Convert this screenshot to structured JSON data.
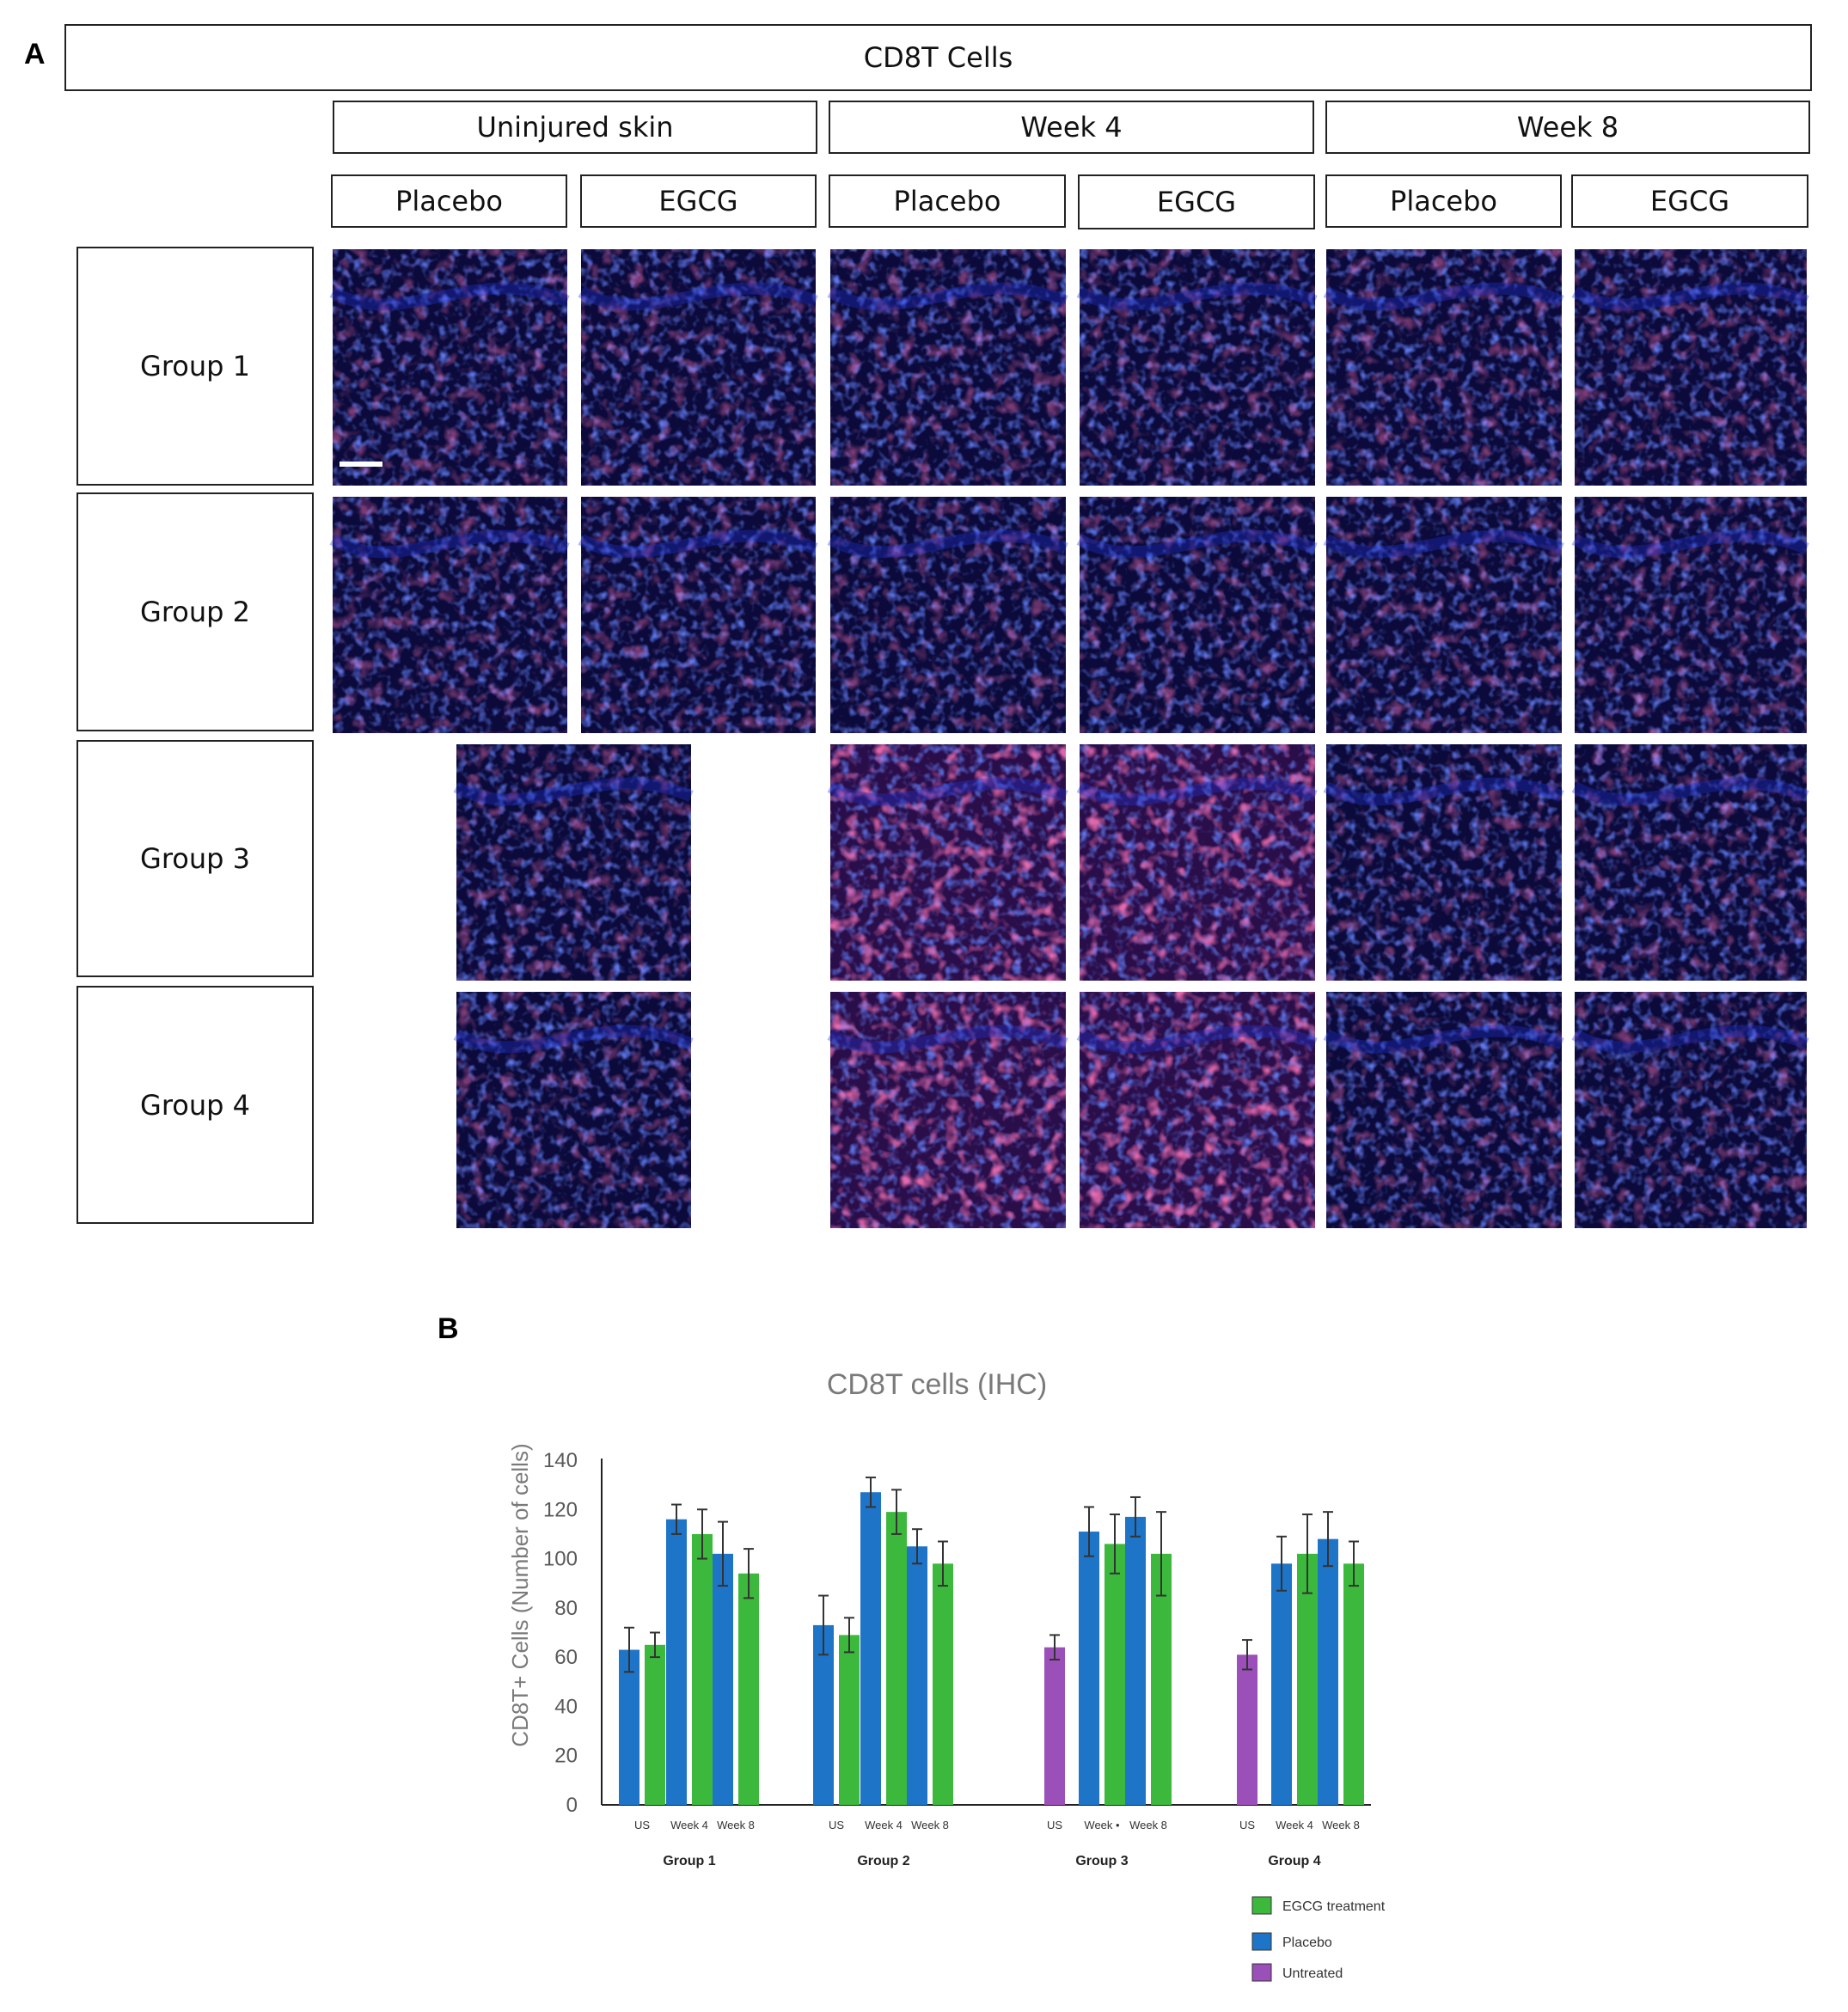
{
  "panel_a": {
    "letter": "A",
    "title": "CD8T Cells",
    "periods": [
      "Uninjured skin",
      "Week 4",
      "Week 8"
    ],
    "treatments": [
      "Placebo",
      "EGCG",
      "Placebo",
      "EGCG",
      "Placebo",
      "EGCG"
    ],
    "groups": [
      "Group 1",
      "Group 2",
      "Group 3",
      "Group 4"
    ],
    "colors": {
      "nuclei": "#1f33d6",
      "background": "#0b0a3a",
      "cd8": "#ff2d7a"
    }
  },
  "panel_b": {
    "letter": "B"
  },
  "chart_data": {
    "type": "bar",
    "title": "CD8T cells (IHC)",
    "xlabel": "",
    "ylabel": "CD8T+ Cells (Number of cells)",
    "ylim": [
      0,
      140
    ],
    "yticks": [
      0,
      20,
      40,
      60,
      80,
      100,
      120,
      140
    ],
    "grid": false,
    "legend_position": "bottom-right",
    "legend": [
      {
        "name": "EGCG treatment",
        "color": "#3cb93c"
      },
      {
        "name": "Placebo",
        "color": "#1e74c7"
      },
      {
        "name": "Untreated",
        "color": "#9b4fb8"
      }
    ],
    "groups": [
      {
        "label": "Group 1",
        "tick_labels": [
          "US",
          "Week 4",
          "Week 8"
        ],
        "bars": [
          {
            "tick": 0,
            "series": "Placebo",
            "value": 63,
            "error": 9
          },
          {
            "tick": 0,
            "series": "EGCG treatment",
            "value": 65,
            "error": 5
          },
          {
            "tick": 1,
            "series": "Placebo",
            "value": 116,
            "error": 6
          },
          {
            "tick": 1,
            "series": "EGCG treatment",
            "value": 110,
            "error": 10
          },
          {
            "tick": 2,
            "series": "Placebo",
            "value": 102,
            "error": 13
          },
          {
            "tick": 2,
            "series": "EGCG treatment",
            "value": 94,
            "error": 10
          }
        ]
      },
      {
        "label": "Group 2",
        "tick_labels": [
          "US",
          "Week 4",
          "Week 8"
        ],
        "bars": [
          {
            "tick": 0,
            "series": "Placebo",
            "value": 73,
            "error": 12
          },
          {
            "tick": 0,
            "series": "EGCG treatment",
            "value": 69,
            "error": 7
          },
          {
            "tick": 1,
            "series": "Placebo",
            "value": 127,
            "error": 6
          },
          {
            "tick": 1,
            "series": "EGCG treatment",
            "value": 119,
            "error": 9
          },
          {
            "tick": 2,
            "series": "Placebo",
            "value": 105,
            "error": 7
          },
          {
            "tick": 2,
            "series": "EGCG treatment",
            "value": 98,
            "error": 9
          }
        ]
      },
      {
        "label": "Group 3",
        "tick_labels": [
          "US",
          "Week •",
          "Week 8"
        ],
        "bars": [
          {
            "tick": 0,
            "series": "Untreated",
            "value": 64,
            "error": 5
          },
          {
            "tick": 1,
            "series": "Placebo",
            "value": 111,
            "error": 10
          },
          {
            "tick": 1,
            "series": "EGCG treatment",
            "value": 106,
            "error": 12
          },
          {
            "tick": 2,
            "series": "Placebo",
            "value": 117,
            "error": 8
          },
          {
            "tick": 2,
            "series": "EGCG treatment",
            "value": 102,
            "error": 17
          }
        ]
      },
      {
        "label": "Group 4",
        "tick_labels": [
          "US",
          "Week 4",
          "Week 8"
        ],
        "bars": [
          {
            "tick": 0,
            "series": "Untreated",
            "value": 61,
            "error": 6
          },
          {
            "tick": 1,
            "series": "Placebo",
            "value": 98,
            "error": 11
          },
          {
            "tick": 1,
            "series": "EGCG treatment",
            "value": 102,
            "error": 16
          },
          {
            "tick": 2,
            "series": "Placebo",
            "value": 108,
            "error": 11
          },
          {
            "tick": 2,
            "series": "EGCG treatment",
            "value": 98,
            "error": 9
          }
        ]
      }
    ]
  }
}
